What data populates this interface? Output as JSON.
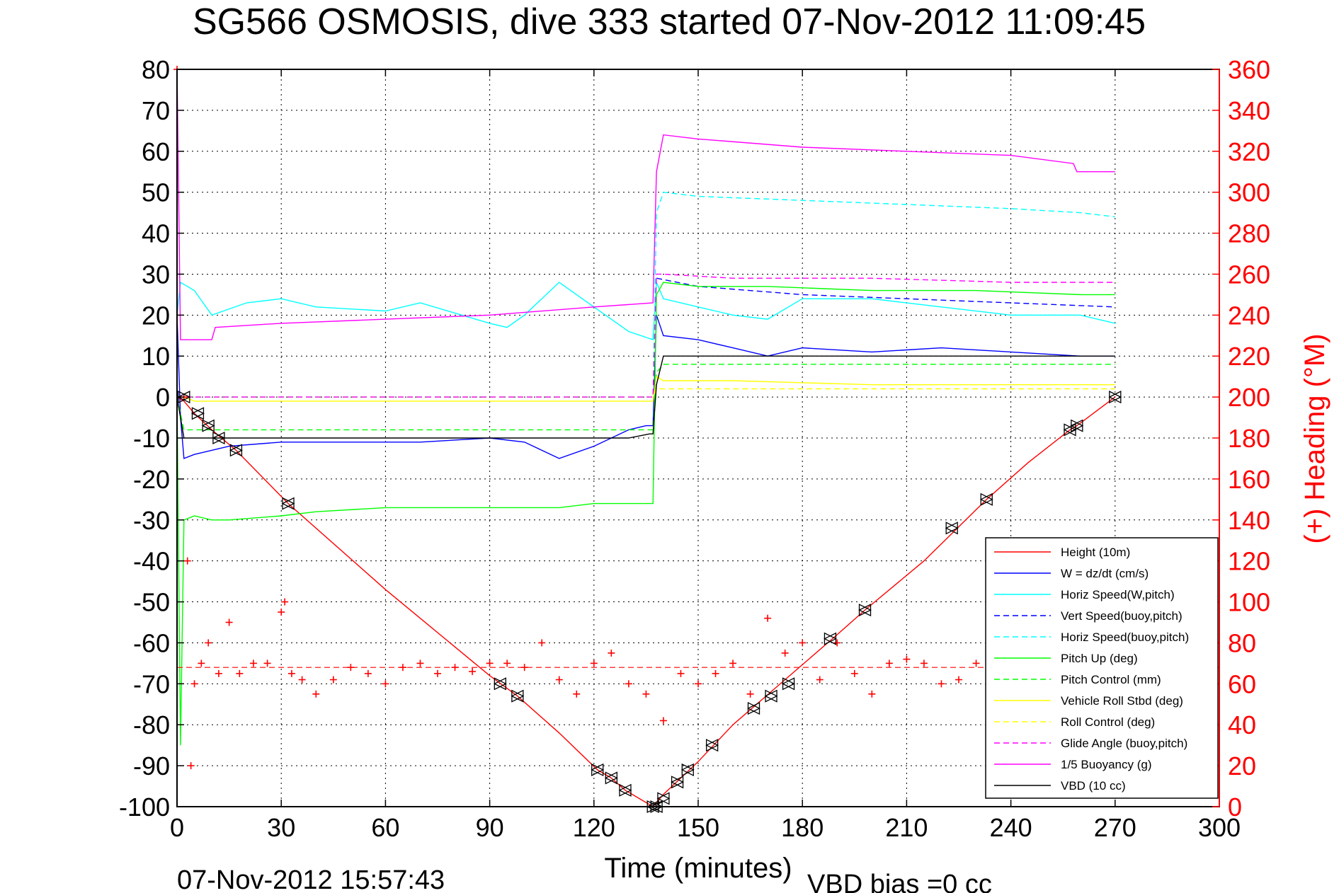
{
  "title": "SG566 OSMOSIS, dive 333 started 07-Nov-2012 11:09:45",
  "footer": {
    "timestamp": "07-Nov-2012 15:57:43",
    "vbd_bias": "VBD bias =0 cc"
  },
  "chart_data": {
    "type": "line",
    "xlabel": "Time (minutes)",
    "ylabel": "",
    "y2label": "(+) Heading (°M)",
    "xlim": [
      0,
      300
    ],
    "ylim": [
      -100,
      80
    ],
    "y2lim": [
      0,
      360
    ],
    "xticks": [
      0,
      30,
      60,
      90,
      120,
      150,
      180,
      210,
      240,
      270,
      300
    ],
    "yticks": [
      -100,
      -90,
      -80,
      -70,
      -60,
      -50,
      -40,
      -30,
      -20,
      -10,
      0,
      10,
      20,
      30,
      40,
      50,
      60,
      70,
      80
    ],
    "y2ticks": [
      0,
      20,
      40,
      60,
      80,
      100,
      120,
      140,
      160,
      180,
      200,
      220,
      240,
      260,
      280,
      300,
      320,
      340,
      360
    ],
    "grid": true,
    "legend_position": "bottom-right",
    "colors": {
      "red": "#ff0000",
      "blue": "#0000ff",
      "cyan": "#00ffff",
      "green": "#00ff00",
      "yellow": "#ffff00",
      "magenta": "#ff00ff",
      "black": "#000000"
    },
    "series": [
      {
        "name": "Height (10m)",
        "color": "#ff0000",
        "style": "solid",
        "x": [
          0,
          2,
          5,
          10,
          17,
          32,
          60,
          90,
          98,
          110,
          121,
          125,
          129,
          137,
          138,
          140,
          145,
          150,
          160,
          175,
          190,
          198,
          215,
          233,
          245,
          257,
          259,
          270
        ],
        "y": [
          0,
          -1,
          -4,
          -8,
          -13,
          -26,
          -47,
          -68,
          -73,
          -82,
          -91,
          -93,
          -96,
          -100,
          -99,
          -97,
          -93,
          -89,
          -80,
          -69,
          -58,
          -52,
          -40,
          -25,
          -16,
          -8,
          -7,
          0
        ]
      },
      {
        "name": "W = dz/dt (cm/s)",
        "color": "#0000ff",
        "style": "solid",
        "x": [
          0,
          1,
          2,
          5,
          15,
          30,
          50,
          70,
          90,
          100,
          110,
          120,
          130,
          135,
          137,
          138,
          140,
          150,
          160,
          170,
          180,
          200,
          220,
          240,
          260,
          270
        ],
        "y": [
          20,
          -5,
          -15,
          -14,
          -12,
          -11,
          -11,
          -11,
          -10,
          -11,
          -15,
          -12,
          -8,
          -7,
          -7,
          20,
          15,
          14,
          12,
          10,
          12,
          11,
          12,
          11,
          10,
          10
        ]
      },
      {
        "name": "Horiz Speed(W,pitch)",
        "color": "#00ffff",
        "style": "solid",
        "x": [
          0,
          1,
          5,
          10,
          20,
          30,
          40,
          60,
          70,
          90,
          95,
          100,
          110,
          120,
          130,
          137,
          138,
          140,
          150,
          160,
          170,
          180,
          200,
          220,
          240,
          260,
          270
        ],
        "y": [
          20,
          28,
          26,
          20,
          23,
          24,
          22,
          21,
          23,
          18,
          17,
          20,
          28,
          22,
          16,
          14,
          28,
          24,
          22,
          20,
          19,
          24,
          24,
          22,
          20,
          20,
          18
        ]
      },
      {
        "name": "Vert Speed(buoy,pitch)",
        "color": "#0000ff",
        "style": "dashed",
        "x": [
          138,
          150,
          180,
          210,
          240,
          270
        ],
        "y": [
          29,
          27,
          25,
          24,
          23,
          22
        ]
      },
      {
        "name": "Horiz Speed(buoy,pitch)",
        "color": "#00ffff",
        "style": "dashed",
        "x": [
          0,
          137,
          138,
          140,
          150,
          180,
          210,
          240,
          260,
          270
        ],
        "y": [
          0,
          0,
          45,
          50,
          49,
          48,
          47,
          46,
          45,
          44
        ]
      },
      {
        "name": "Pitch Up (deg)",
        "color": "#00ff00",
        "style": "solid",
        "x": [
          0,
          1,
          2,
          5,
          10,
          15,
          30,
          40,
          60,
          90,
          110,
          120,
          130,
          136,
          137,
          138,
          140,
          150,
          170,
          200,
          230,
          260,
          270
        ],
        "y": [
          0,
          -85,
          -30,
          -29,
          -30,
          -30,
          -29,
          -28,
          -27,
          -27,
          -27,
          -26,
          -26,
          -26,
          -26,
          25,
          28,
          27,
          27,
          26,
          26,
          25,
          25
        ]
      },
      {
        "name": "Pitch Control (mm)",
        "color": "#00ff00",
        "style": "dashed",
        "x": [
          0,
          2,
          10,
          137,
          138,
          140,
          270
        ],
        "y": [
          0,
          -8,
          -8,
          -8,
          6,
          8,
          8
        ]
      },
      {
        "name": "Vehicle Roll Stbd (deg)",
        "color": "#ffff00",
        "style": "solid",
        "x": [
          0,
          2,
          5,
          20,
          60,
          100,
          120,
          137,
          138,
          140,
          160,
          200,
          240,
          270
        ],
        "y": [
          0,
          0,
          -1,
          -1,
          -1,
          -1,
          -1,
          -1,
          5,
          4,
          4,
          3,
          3,
          3
        ]
      },
      {
        "name": "Roll Control (deg)",
        "color": "#ffff00",
        "style": "dashed",
        "x": [
          0,
          137,
          138,
          270
        ],
        "y": [
          0,
          0,
          2,
          2
        ]
      },
      {
        "name": "Glide Angle (buoy,pitch)",
        "color": "#ff00ff",
        "style": "dashed",
        "x": [
          0,
          137,
          138,
          140,
          160,
          200,
          240,
          270
        ],
        "y": [
          0,
          0,
          30,
          30,
          29,
          29,
          28,
          28
        ]
      },
      {
        "name": "1/5 Buoyancy (g)",
        "color": "#ff00ff",
        "style": "solid",
        "x": [
          0,
          1,
          2,
          10,
          11,
          30,
          60,
          90,
          120,
          137,
          138,
          140,
          150,
          180,
          210,
          240,
          258,
          259,
          270
        ],
        "y": [
          80,
          14,
          14,
          14,
          17,
          18,
          19,
          20,
          22,
          23,
          55,
          64,
          63,
          61,
          60,
          59,
          57,
          55,
          55
        ]
      },
      {
        "name": "VBD (10 cc)",
        "color": "#000000",
        "style": "solid",
        "x": [
          0,
          1,
          2,
          130,
          136,
          137,
          138,
          140,
          150,
          200,
          250,
          270
        ],
        "y": [
          0,
          -5,
          -10,
          -10,
          -9,
          -9,
          3,
          10,
          10,
          10,
          10,
          10
        ]
      }
    ],
    "heading_series": {
      "name": "(+) Heading",
      "color": "#ff0000",
      "axis": "right",
      "marker": "+",
      "reference_line": 68,
      "x": [
        0,
        2,
        3,
        4,
        5,
        7,
        9,
        12,
        15,
        18,
        22,
        26,
        30,
        31,
        33,
        36,
        40,
        45,
        50,
        55,
        60,
        65,
        70,
        75,
        80,
        85,
        90,
        95,
        100,
        105,
        110,
        115,
        120,
        125,
        130,
        135,
        140,
        145,
        150,
        155,
        160,
        165,
        170,
        175,
        180,
        185,
        190,
        195,
        200,
        205,
        210,
        215,
        220,
        225,
        230,
        234
      ],
      "y": [
        360,
        200,
        120,
        20,
        60,
        70,
        80,
        65,
        90,
        65,
        70,
        70,
        95,
        100,
        65,
        62,
        55,
        62,
        68,
        65,
        60,
        68,
        70,
        65,
        68,
        66,
        70,
        70,
        68,
        80,
        62,
        55,
        70,
        75,
        60,
        55,
        42,
        65,
        60,
        65,
        70,
        55,
        92,
        75,
        80,
        62,
        80,
        65,
        55,
        70,
        72,
        70,
        60,
        62,
        70,
        78
      ]
    },
    "markers": {
      "style": "triangle-pair",
      "color": "#000000",
      "x": [
        2,
        6,
        9,
        12,
        17,
        32,
        93,
        98,
        121,
        125,
        129,
        137,
        138,
        140,
        144,
        147,
        154,
        166,
        171,
        176,
        188,
        198,
        223,
        233,
        257,
        259,
        270
      ],
      "y": [
        0,
        -4,
        -7,
        -10,
        -13,
        -26,
        -70,
        -73,
        -91,
        -93,
        -96,
        -100,
        -100,
        -98,
        -94,
        -91,
        -85,
        -76,
        -73,
        -70,
        -59,
        -52,
        -32,
        -25,
        -8,
        -7,
        0
      ]
    }
  }
}
